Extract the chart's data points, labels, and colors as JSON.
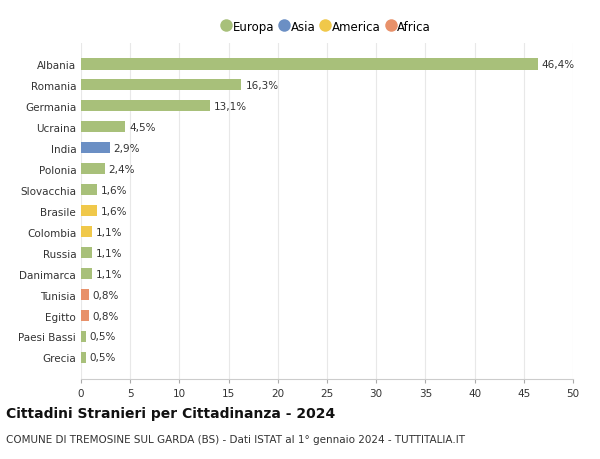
{
  "countries": [
    "Albania",
    "Romania",
    "Germania",
    "Ucraina",
    "India",
    "Polonia",
    "Slovacchia",
    "Brasile",
    "Colombia",
    "Russia",
    "Danimarca",
    "Tunisia",
    "Egitto",
    "Paesi Bassi",
    "Grecia"
  ],
  "values": [
    46.4,
    16.3,
    13.1,
    4.5,
    2.9,
    2.4,
    1.6,
    1.6,
    1.1,
    1.1,
    1.1,
    0.8,
    0.8,
    0.5,
    0.5
  ],
  "labels": [
    "46,4%",
    "16,3%",
    "13,1%",
    "4,5%",
    "2,9%",
    "2,4%",
    "1,6%",
    "1,6%",
    "1,1%",
    "1,1%",
    "1,1%",
    "0,8%",
    "0,8%",
    "0,5%",
    "0,5%"
  ],
  "continents": [
    "Europa",
    "Europa",
    "Europa",
    "Europa",
    "Asia",
    "Europa",
    "Europa",
    "America",
    "America",
    "Europa",
    "Europa",
    "Africa",
    "Africa",
    "Europa",
    "Europa"
  ],
  "colors": {
    "Europa": "#a8c07a",
    "Asia": "#6b8fc4",
    "America": "#f0c84a",
    "Africa": "#e8916a"
  },
  "title": "Cittadini Stranieri per Cittadinanza - 2024",
  "subtitle": "COMUNE DI TREMOSINE SUL GARDA (BS) - Dati ISTAT al 1° gennaio 2024 - TUTTITALIA.IT",
  "xlim": [
    0,
    50
  ],
  "xticks": [
    0,
    5,
    10,
    15,
    20,
    25,
    30,
    35,
    40,
    45,
    50
  ],
  "background_color": "#ffffff",
  "grid_color": "#e8e8e8",
  "bar_height": 0.55,
  "label_fontsize": 7.5,
  "tick_fontsize": 7.5,
  "title_fontsize": 10,
  "subtitle_fontsize": 7.5,
  "legend_entries": [
    "Europa",
    "Asia",
    "America",
    "Africa"
  ]
}
